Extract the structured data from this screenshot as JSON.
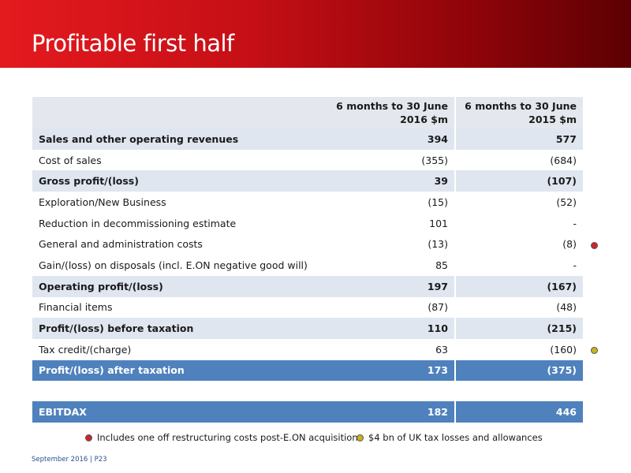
{
  "header": {
    "title": "Profitable first half"
  },
  "table": {
    "columns": [
      {
        "line1": "6 months to 30 June",
        "line2": "2016 $m"
      },
      {
        "line1": "6 months to 30 June",
        "line2": "2015 $m"
      }
    ],
    "rows": [
      {
        "label": "Sales and other operating revenues",
        "v2016": "394",
        "v2015": "577"
      },
      {
        "label": "Cost of sales",
        "v2016": "(355)",
        "v2015": "(684)"
      },
      {
        "label": "Gross profit/(loss)",
        "v2016": "39",
        "v2015": "(107)"
      },
      {
        "label": "Exploration/New Business",
        "v2016": "(15)",
        "v2015": "(52)"
      },
      {
        "label": "Reduction in decommissioning estimate",
        "v2016": "101",
        "v2015": "-"
      },
      {
        "label": "General and administration costs",
        "v2016": "(13)",
        "v2015": "(8)"
      },
      {
        "label": "Gain/(loss) on disposals (incl. E.ON negative good will)",
        "v2016": "85",
        "v2015": "-"
      },
      {
        "label": "Operating profit/(loss)",
        "v2016": "197",
        "v2015": "(167)"
      },
      {
        "label": "Financial items",
        "v2016": "(87)",
        "v2015": "(48)"
      },
      {
        "label": "Profit/(loss) before taxation",
        "v2016": "110",
        "v2015": "(215)"
      },
      {
        "label": "Tax credit/(charge)",
        "v2016": "63",
        "v2015": "(160)"
      },
      {
        "label": "Profit/(loss) after taxation",
        "v2016": "173",
        "v2015": "(375)"
      }
    ],
    "ebitdax": {
      "label": "EBITDAX",
      "v2016": "182",
      "v2015": "446"
    }
  },
  "markers": {
    "red_color": "#d2232a",
    "yellow_color": "#c8b418"
  },
  "legend": {
    "red_text": "Includes one off restructuring costs post-E.ON acquisition",
    "yellow_text": "$4 bn of UK tax losses and allowances"
  },
  "footer": {
    "text": "September 2016 | P23"
  }
}
